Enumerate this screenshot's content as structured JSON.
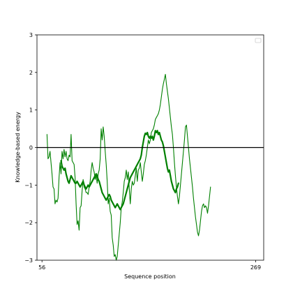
{
  "chart_data": {
    "type": "line",
    "title": "",
    "xlabel": "Sequence position",
    "ylabel": "Knowledge-based energy",
    "xlim": [
      51,
      277
    ],
    "ylim": [
      -3,
      3
    ],
    "x_ticks": [
      {
        "value": 56,
        "label": "56"
      },
      {
        "value": 269,
        "label": "269"
      }
    ],
    "y_ticks": [
      {
        "value": -3,
        "label": "−3"
      },
      {
        "value": -2,
        "label": "−2"
      },
      {
        "value": -1,
        "label": "−1"
      },
      {
        "value": 0,
        "label": "0"
      },
      {
        "value": 1,
        "label": "1"
      },
      {
        "value": 2,
        "label": "2"
      },
      {
        "value": 3,
        "label": "3"
      }
    ],
    "reference_line_y": 0,
    "legend": "top-right (empty)",
    "colors": {
      "series": "#008000",
      "zero_line": "#000000",
      "frame": "#000000"
    },
    "series": [
      {
        "style": "thin",
        "points": [
          [
            61,
            0.35
          ],
          [
            62,
            -0.3
          ],
          [
            63,
            -0.25
          ],
          [
            64,
            -0.1
          ],
          [
            65,
            -0.4
          ],
          [
            66,
            -0.7
          ],
          [
            67,
            -1.05
          ],
          [
            68,
            -1.1
          ],
          [
            69,
            -1.5
          ],
          [
            70,
            -1.4
          ],
          [
            71,
            -1.45
          ],
          [
            72,
            -1.35
          ],
          [
            73,
            -0.8
          ],
          [
            74,
            -0.4
          ],
          [
            75,
            -0.7
          ],
          [
            76,
            -0.1
          ],
          [
            77,
            -0.3
          ],
          [
            78,
            -0.05
          ],
          [
            79,
            -0.25
          ],
          [
            80,
            -0.1
          ],
          [
            81,
            -0.3
          ],
          [
            82,
            -0.35
          ],
          [
            83,
            -0.2
          ],
          [
            84,
            -0.25
          ],
          [
            85,
            0.35
          ],
          [
            86,
            -0.35
          ],
          [
            87,
            -0.4
          ],
          [
            88,
            -0.45
          ],
          [
            89,
            -0.8
          ],
          [
            90,
            -1.5
          ],
          [
            91,
            -2.05
          ],
          [
            92,
            -1.95
          ],
          [
            93,
            -2.2
          ],
          [
            94,
            -1.6
          ],
          [
            95,
            -1.55
          ],
          [
            96,
            -1.15
          ],
          [
            97,
            -0.85
          ],
          [
            98,
            -1.05
          ],
          [
            99,
            -1.1
          ],
          [
            100,
            -1.2
          ],
          [
            101,
            -1.2
          ],
          [
            102,
            -1.25
          ],
          [
            103,
            -1.05
          ],
          [
            104,
            -0.9
          ],
          [
            105,
            -0.6
          ],
          [
            106,
            -0.4
          ],
          [
            107,
            -0.55
          ],
          [
            108,
            -0.65
          ],
          [
            109,
            -0.85
          ],
          [
            110,
            -0.75
          ],
          [
            111,
            -0.95
          ],
          [
            112,
            -0.7
          ],
          [
            113,
            -0.6
          ],
          [
            114,
            -0.3
          ],
          [
            115,
            0.5
          ],
          [
            116,
            0.2
          ],
          [
            117,
            0.55
          ],
          [
            118,
            0.3
          ],
          [
            119,
            -0.1
          ],
          [
            120,
            -0.45
          ],
          [
            121,
            -0.9
          ],
          [
            122,
            -1.5
          ],
          [
            123,
            -1.35
          ],
          [
            124,
            -1.7
          ],
          [
            125,
            -1.8
          ],
          [
            126,
            -2.4
          ],
          [
            127,
            -2.6
          ],
          [
            128,
            -2.9
          ],
          [
            129,
            -2.85
          ],
          [
            130,
            -3.0
          ],
          [
            131,
            -2.9
          ],
          [
            132,
            -2.6
          ],
          [
            133,
            -2.3
          ],
          [
            134,
            -2.0
          ],
          [
            135,
            -1.6
          ],
          [
            136,
            -1.45
          ],
          [
            137,
            -1.2
          ],
          [
            138,
            -0.9
          ],
          [
            139,
            -0.8
          ],
          [
            140,
            -0.6
          ],
          [
            141,
            -0.85
          ],
          [
            142,
            -0.65
          ],
          [
            143,
            -1.1
          ],
          [
            144,
            -1.5
          ],
          [
            145,
            -1.1
          ],
          [
            146,
            -0.9
          ],
          [
            147,
            -1.0
          ],
          [
            148,
            -0.95
          ],
          [
            149,
            -0.75
          ],
          [
            150,
            -0.55
          ],
          [
            151,
            -0.9
          ],
          [
            152,
            -0.6
          ],
          [
            153,
            -0.55
          ],
          [
            154,
            -0.4
          ],
          [
            155,
            -0.65
          ],
          [
            156,
            -0.9
          ],
          [
            157,
            -0.7
          ],
          [
            158,
            -0.45
          ],
          [
            159,
            -0.35
          ],
          [
            160,
            -0.2
          ],
          [
            161,
            0.0
          ],
          [
            162,
            0.2
          ],
          [
            163,
            0.1
          ],
          [
            164,
            0.2
          ],
          [
            165,
            0.4
          ],
          [
            166,
            0.45
          ],
          [
            167,
            0.5
          ],
          [
            168,
            0.6
          ],
          [
            169,
            0.75
          ],
          [
            170,
            0.8
          ],
          [
            171,
            0.85
          ],
          [
            172,
            0.9
          ],
          [
            173,
            1.0
          ],
          [
            174,
            1.15
          ],
          [
            175,
            1.35
          ],
          [
            176,
            1.55
          ],
          [
            177,
            1.7
          ],
          [
            178,
            1.82
          ],
          [
            179,
            1.95
          ],
          [
            180,
            1.7
          ],
          [
            181,
            1.5
          ],
          [
            182,
            1.3
          ],
          [
            183,
            1.05
          ],
          [
            184,
            0.8
          ],
          [
            185,
            0.55
          ],
          [
            186,
            0.35
          ],
          [
            187,
            0.0
          ],
          [
            188,
            -0.4
          ],
          [
            189,
            -0.75
          ],
          [
            190,
            -1.05
          ],
          [
            191,
            -1.3
          ],
          [
            192,
            -1.5
          ],
          [
            193,
            -1.3
          ],
          [
            194,
            -1.0
          ],
          [
            195,
            -0.7
          ],
          [
            196,
            -0.4
          ],
          [
            197,
            -0.1
          ],
          [
            198,
            0.2
          ],
          [
            199,
            0.55
          ],
          [
            200,
            0.6
          ],
          [
            201,
            0.3
          ],
          [
            202,
            0.0
          ],
          [
            203,
            -0.3
          ],
          [
            204,
            -0.55
          ],
          [
            205,
            -0.8
          ],
          [
            206,
            -1.05
          ],
          [
            207,
            -1.35
          ],
          [
            208,
            -1.6
          ],
          [
            209,
            -1.85
          ],
          [
            210,
            -2.05
          ],
          [
            211,
            -2.25
          ],
          [
            212,
            -2.35
          ],
          [
            213,
            -2.2
          ],
          [
            214,
            -1.95
          ],
          [
            215,
            -1.7
          ],
          [
            216,
            -1.55
          ],
          [
            217,
            -1.5
          ],
          [
            218,
            -1.6
          ],
          [
            219,
            -1.55
          ],
          [
            220,
            -1.6
          ],
          [
            221,
            -1.75
          ],
          [
            222,
            -1.55
          ],
          [
            223,
            -1.3
          ],
          [
            224,
            -1.05
          ]
        ]
      },
      {
        "style": "thick",
        "points": [
          [
            75,
            -0.35
          ],
          [
            76,
            -0.5
          ],
          [
            77,
            -0.55
          ],
          [
            78,
            -0.6
          ],
          [
            79,
            -0.55
          ],
          [
            80,
            -0.7
          ],
          [
            81,
            -0.8
          ],
          [
            82,
            -0.9
          ],
          [
            83,
            -0.95
          ],
          [
            84,
            -0.85
          ],
          [
            85,
            -0.75
          ],
          [
            86,
            -0.8
          ],
          [
            87,
            -0.85
          ],
          [
            88,
            -0.9
          ],
          [
            89,
            -0.95
          ],
          [
            90,
            -0.95
          ],
          [
            91,
            -0.9
          ],
          [
            92,
            -0.95
          ],
          [
            93,
            -1.0
          ],
          [
            94,
            -1.05
          ],
          [
            95,
            -1.0
          ],
          [
            96,
            -0.95
          ],
          [
            97,
            -0.9
          ],
          [
            98,
            -1.0
          ],
          [
            99,
            -1.05
          ],
          [
            100,
            -1.1
          ],
          [
            101,
            -1.05
          ],
          [
            102,
            -1.0
          ],
          [
            103,
            -1.05
          ],
          [
            104,
            -1.0
          ],
          [
            105,
            -0.95
          ],
          [
            106,
            -0.9
          ],
          [
            107,
            -0.85
          ],
          [
            108,
            -0.8
          ],
          [
            109,
            -0.75
          ],
          [
            110,
            -0.7
          ],
          [
            111,
            -0.75
          ],
          [
            112,
            -0.85
          ],
          [
            113,
            -0.9
          ],
          [
            114,
            -1.0
          ],
          [
            115,
            -1.1
          ],
          [
            116,
            -1.2
          ],
          [
            117,
            -1.25
          ],
          [
            118,
            -1.3
          ],
          [
            119,
            -1.35
          ],
          [
            120,
            -1.4
          ],
          [
            121,
            -1.35
          ],
          [
            122,
            -1.3
          ],
          [
            123,
            -1.25
          ],
          [
            124,
            -1.3
          ],
          [
            125,
            -1.4
          ],
          [
            126,
            -1.45
          ],
          [
            127,
            -1.5
          ],
          [
            128,
            -1.55
          ],
          [
            129,
            -1.6
          ],
          [
            130,
            -1.55
          ],
          [
            131,
            -1.5
          ],
          [
            132,
            -1.55
          ],
          [
            133,
            -1.6
          ],
          [
            134,
            -1.65
          ],
          [
            135,
            -1.6
          ],
          [
            136,
            -1.55
          ],
          [
            137,
            -1.5
          ],
          [
            138,
            -1.4
          ],
          [
            139,
            -1.3
          ],
          [
            140,
            -1.2
          ],
          [
            141,
            -1.1
          ],
          [
            142,
            -1.0
          ],
          [
            143,
            -0.9
          ],
          [
            144,
            -0.8
          ],
          [
            145,
            -0.75
          ],
          [
            146,
            -0.7
          ],
          [
            147,
            -0.65
          ],
          [
            148,
            -0.6
          ],
          [
            149,
            -0.55
          ],
          [
            150,
            -0.5
          ],
          [
            151,
            -0.45
          ],
          [
            152,
            -0.4
          ],
          [
            153,
            -0.35
          ],
          [
            154,
            -0.3
          ],
          [
            155,
            -0.2
          ],
          [
            156,
            0.0
          ],
          [
            157,
            0.15
          ],
          [
            158,
            0.3
          ],
          [
            159,
            0.38
          ],
          [
            160,
            0.35
          ],
          [
            161,
            0.4
          ],
          [
            162,
            0.3
          ],
          [
            163,
            0.25
          ],
          [
            164,
            0.3
          ],
          [
            165,
            0.25
          ],
          [
            166,
            0.3
          ],
          [
            167,
            0.2
          ],
          [
            168,
            0.3
          ],
          [
            169,
            0.45
          ],
          [
            170,
            0.4
          ],
          [
            171,
            0.45
          ],
          [
            172,
            0.35
          ],
          [
            173,
            0.4
          ],
          [
            174,
            0.3
          ],
          [
            175,
            0.2
          ],
          [
            176,
            0.15
          ],
          [
            177,
            0.05
          ],
          [
            178,
            -0.1
          ],
          [
            179,
            -0.25
          ],
          [
            180,
            -0.4
          ],
          [
            181,
            -0.55
          ],
          [
            182,
            -0.65
          ],
          [
            183,
            -0.6
          ],
          [
            184,
            -0.75
          ],
          [
            185,
            -0.9
          ],
          [
            186,
            -1.0
          ],
          [
            187,
            -1.1
          ],
          [
            188,
            -1.15
          ],
          [
            189,
            -1.2
          ],
          [
            190,
            -1.1
          ],
          [
            191,
            -1.05
          ],
          [
            192,
            -0.95
          ]
        ]
      }
    ]
  }
}
